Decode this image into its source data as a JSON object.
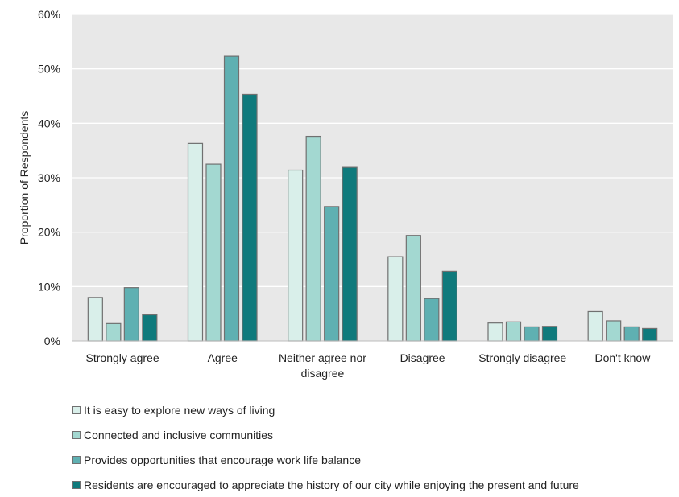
{
  "chart_data": {
    "type": "bar",
    "title": "",
    "xlabel": "",
    "ylabel": "Proportion of Respondents",
    "ylim": [
      0,
      60
    ],
    "y_ticks": [
      "0%",
      "10%",
      "20%",
      "30%",
      "40%",
      "50%",
      "60%"
    ],
    "grid": true,
    "legend_position": "bottom",
    "categories": [
      "Strongly agree",
      "Agree",
      "Neither agree nor disagree",
      "Disagree",
      "Strongly disagree",
      "Don't know"
    ],
    "series": [
      {
        "name": "It is easy to explore new ways of living",
        "color": "#d9efea",
        "values": [
          8.0,
          36.3,
          31.4,
          15.5,
          3.3,
          5.4
        ]
      },
      {
        "name": "Connected and inclusive communities",
        "color": "#a3d8d1",
        "values": [
          3.2,
          32.5,
          37.6,
          19.4,
          3.5,
          3.7
        ]
      },
      {
        "name": "Provides opportunities that encourage work life balance",
        "color": "#5fb0b2",
        "values": [
          9.8,
          52.3,
          24.7,
          7.8,
          2.6,
          2.6
        ]
      },
      {
        "name": "Residents are encouraged to appreciate the history of our city while enjoying the present and future",
        "color": "#0f7a7c",
        "values": [
          4.8,
          45.3,
          31.9,
          12.8,
          2.7,
          2.3
        ]
      }
    ]
  }
}
